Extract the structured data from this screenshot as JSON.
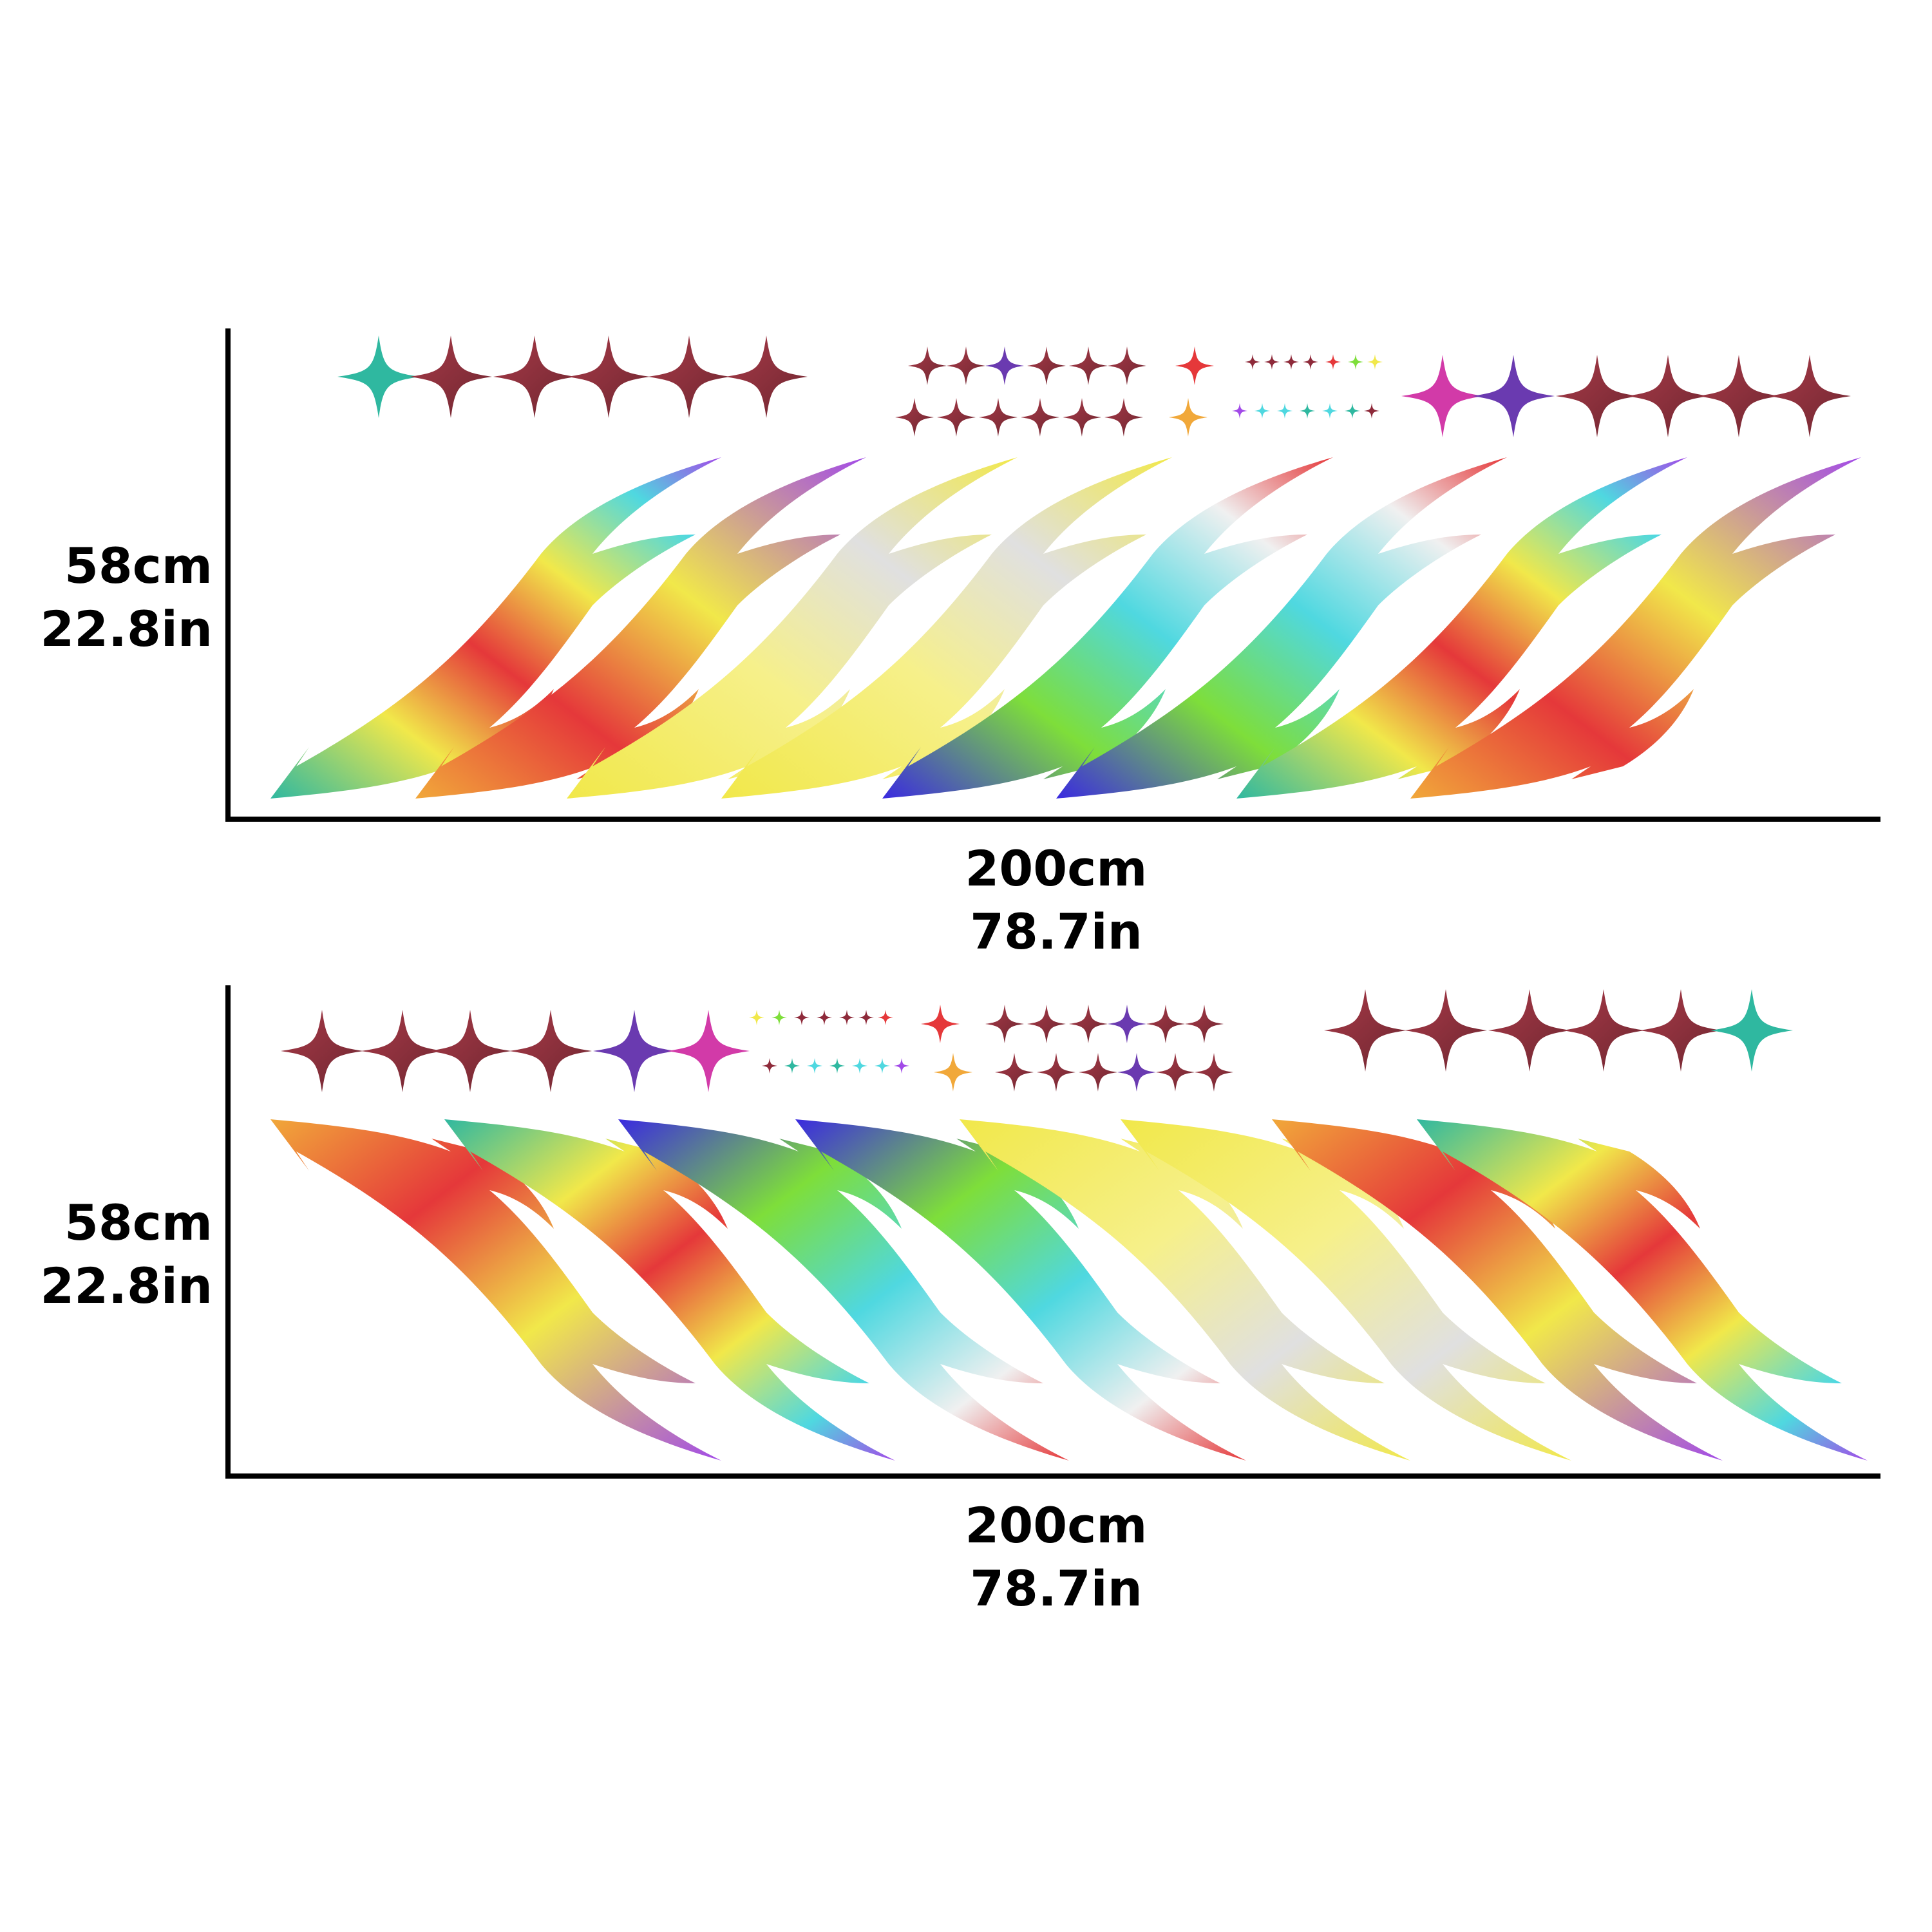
{
  "panels": [
    {
      "height_metric": "58cm",
      "height_imperial": "22.8in",
      "width_metric": "200cm",
      "width_imperial": "78.7in",
      "orientation": "rising-right"
    },
    {
      "height_metric": "58cm",
      "height_imperial": "22.8in",
      "width_metric": "200cm",
      "width_imperial": "78.7in",
      "orientation": "falling-right"
    }
  ],
  "colors": {
    "axis": "#000000",
    "background": "#ffffff",
    "star_maroon": "#8e2a3a",
    "star_magenta": "#d23aa8",
    "star_teal": "#2fb8a0",
    "flame_yellow": "#f1e84a",
    "flame_cyan": "#4fd8e0",
    "flame_violet": "#a24ae8",
    "flame_red": "#e5383a",
    "flame_green": "#7ede3a"
  },
  "icons": [
    "sparkle-star-icon",
    "flame-stripe-icon"
  ]
}
